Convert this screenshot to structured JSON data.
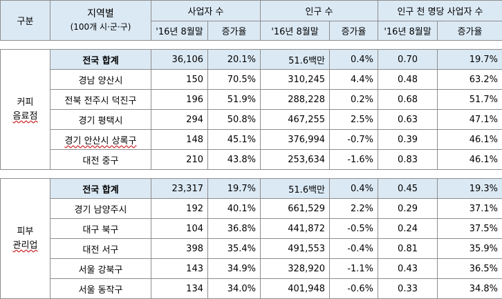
{
  "header": {
    "category": "구분",
    "region_line1": "지역별",
    "region_line2": "(100개 시·군·구)",
    "businesses": "사업자 수",
    "population": "인구 수",
    "per_thousand": "인구 천 명당 사업자 수",
    "sub_month": "'16년 8월말",
    "sub_rate": "증가율"
  },
  "sections": [
    {
      "category_line1": "커피",
      "category_line2": "음료점",
      "total": {
        "region": "전국 합계",
        "biz": "36,106",
        "biz_rate": "20.1%",
        "pop": "51.6백만",
        "pop_rate": "0.4%",
        "per": "0.70",
        "per_rate": "19.7%"
      },
      "rows": [
        {
          "region": "경남 양산시",
          "biz": "150",
          "biz_rate": "70.5%",
          "pop": "310,245",
          "pop_rate": "4.4%",
          "per": "0.48",
          "per_rate": "63.2%"
        },
        {
          "region": "전북 전주시 덕진구",
          "biz": "196",
          "biz_rate": "51.9%",
          "pop": "288,228",
          "pop_rate": "0.2%",
          "per": "0.68",
          "per_rate": "51.7%"
        },
        {
          "region": "경기 평택시",
          "biz": "294",
          "biz_rate": "50.8%",
          "pop": "467,255",
          "pop_rate": "2.5%",
          "per": "0.63",
          "per_rate": "47.1%"
        },
        {
          "region": "경기 안산시 상록구",
          "biz": "148",
          "biz_rate": "45.1%",
          "pop": "376,994",
          "pop_rate": "-0.7%",
          "per": "0.39",
          "per_rate": "46.1%"
        },
        {
          "region": "대전 중구",
          "biz": "210",
          "biz_rate": "43.8%",
          "pop": "253,634",
          "pop_rate": "-1.6%",
          "per": "0.83",
          "per_rate": "46.1%"
        }
      ]
    },
    {
      "category_line1": "피부",
      "category_line2": "관리업",
      "total": {
        "region": "전국 합계",
        "biz": "23,317",
        "biz_rate": "19.7%",
        "pop": "51.6백만",
        "pop_rate": "0.4%",
        "per": "0.45",
        "per_rate": "19.3%"
      },
      "rows": [
        {
          "region": "경기 남양주시",
          "biz": "192",
          "biz_rate": "40.1%",
          "pop": "661,529",
          "pop_rate": "2.2%",
          "per": "0.29",
          "per_rate": "37.1%"
        },
        {
          "region": "대구 북구",
          "biz": "104",
          "biz_rate": "36.8%",
          "pop": "441,872",
          "pop_rate": "-0.5%",
          "per": "0.24",
          "per_rate": "37.5%"
        },
        {
          "region": "대전 서구",
          "biz": "398",
          "biz_rate": "35.4%",
          "pop": "491,553",
          "pop_rate": "-0.4%",
          "per": "0.81",
          "per_rate": "35.9%"
        },
        {
          "region": "서울 강북구",
          "biz": "143",
          "biz_rate": "34.9%",
          "pop": "328,920",
          "pop_rate": "-1.1%",
          "per": "0.43",
          "per_rate": "36.5%"
        },
        {
          "region": "서울 동작구",
          "biz": "134",
          "biz_rate": "34.0%",
          "pop": "401,948",
          "pop_rate": "-0.6%",
          "per": "0.33",
          "per_rate": "34.8%"
        }
      ]
    }
  ]
}
